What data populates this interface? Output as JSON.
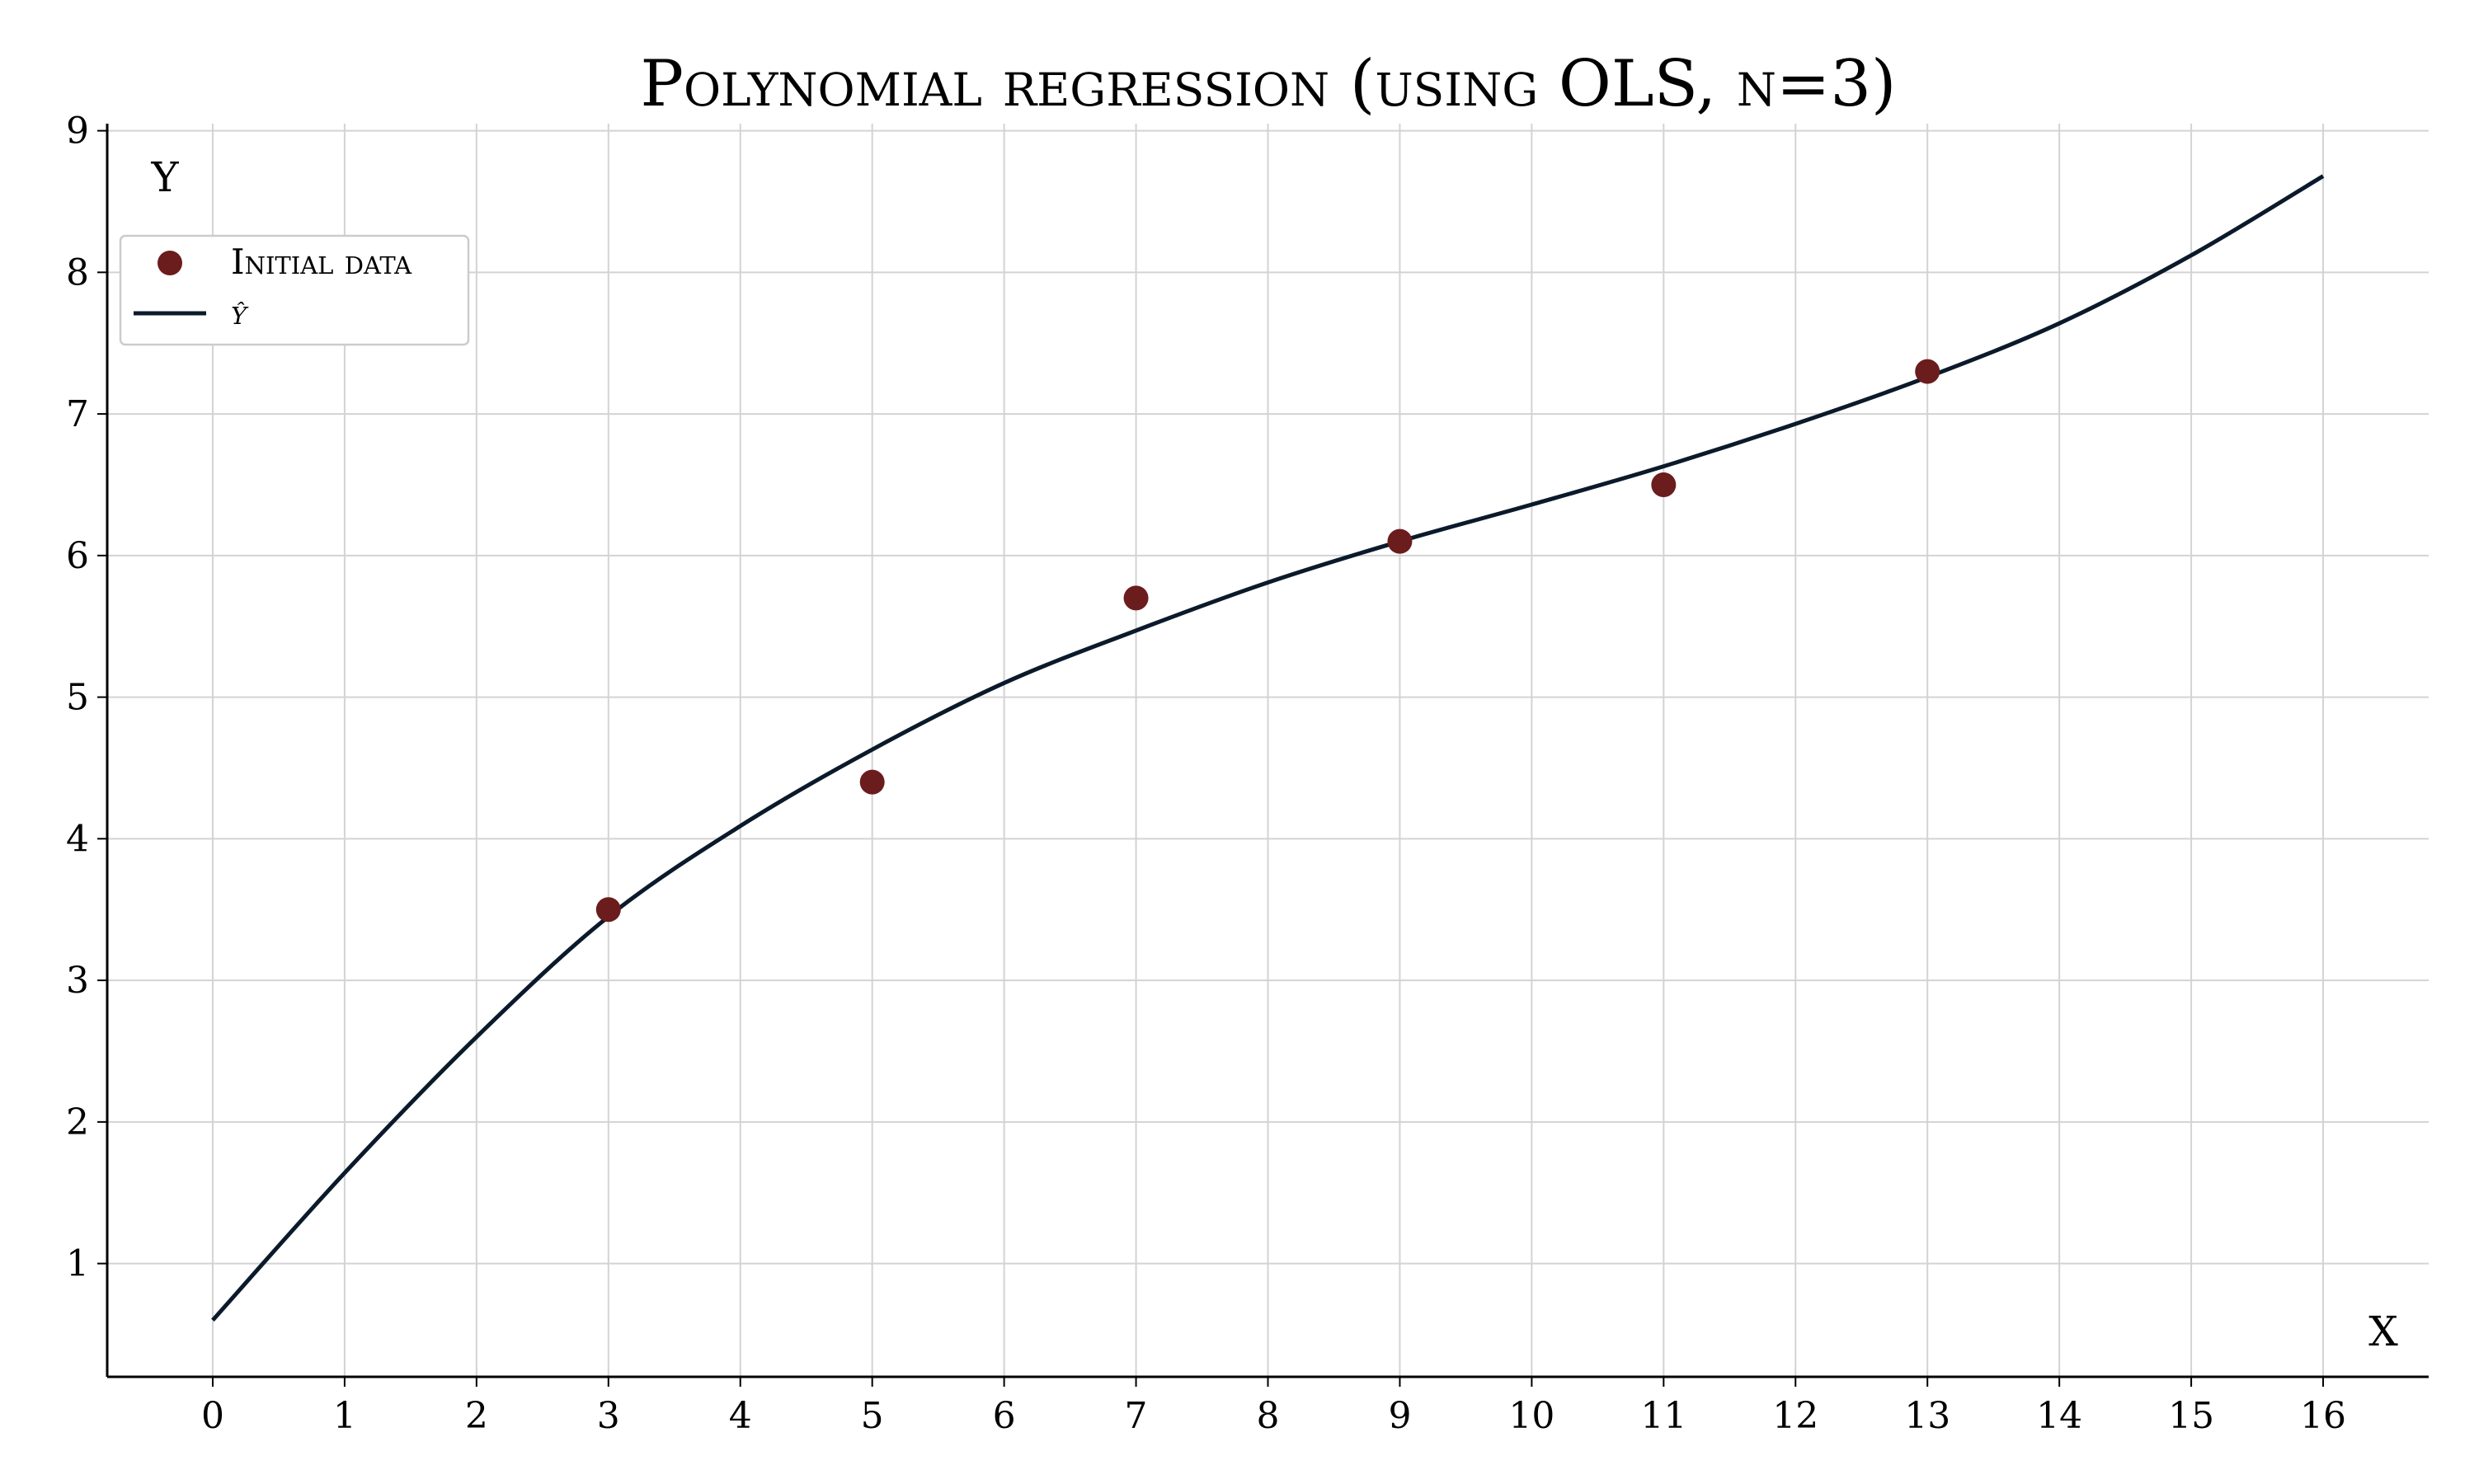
{
  "chart_data": {
    "type": "scatter",
    "title": "Polynomial regression (using OLS, n=3)",
    "xlabel": "X",
    "ylabel": "Y",
    "xlim": [
      -0.8,
      16.8
    ],
    "ylim": [
      0.2,
      9.05
    ],
    "x_ticks": [
      "0",
      "1",
      "2",
      "3",
      "4",
      "5",
      "6",
      "7",
      "8",
      "9",
      "10",
      "11",
      "12",
      "13",
      "14",
      "15",
      "16"
    ],
    "y_ticks": [
      "1",
      "2",
      "3",
      "4",
      "5",
      "6",
      "7",
      "8",
      "9"
    ],
    "grid": true,
    "legend_position": "upper-left",
    "series": [
      {
        "name": "Initial data",
        "kind": "scatter",
        "color": "#6b1c1c",
        "x": [
          3,
          5,
          7,
          9,
          11,
          13
        ],
        "y": [
          3.5,
          4.4,
          5.7,
          6.1,
          6.5,
          7.3
        ]
      },
      {
        "name": "ŷ",
        "kind": "line",
        "color": "#0b1a2b",
        "x": [
          0,
          1,
          2,
          3,
          4,
          5,
          6,
          7,
          8,
          9,
          10,
          11,
          12,
          13,
          14,
          15,
          16
        ],
        "y": [
          0.6,
          1.64,
          2.6,
          3.45,
          4.09,
          4.63,
          5.1,
          5.47,
          5.81,
          6.1,
          6.36,
          6.63,
          6.93,
          7.26,
          7.64,
          8.12,
          8.68
        ]
      }
    ]
  }
}
